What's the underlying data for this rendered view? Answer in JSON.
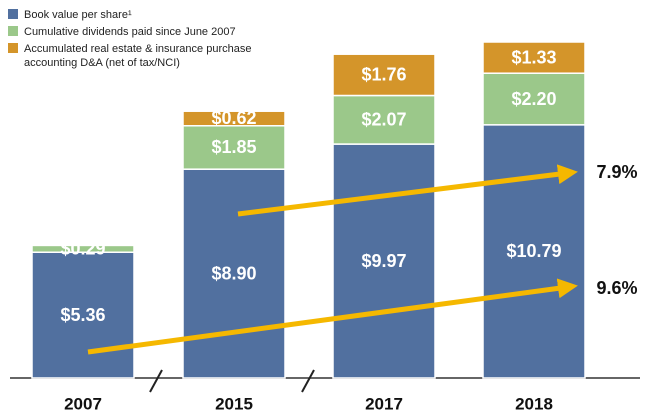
{
  "chart_data": {
    "type": "stacked_bar",
    "categories": [
      "2007",
      "2015",
      "2017",
      "2018"
    ],
    "series": [
      {
        "name": "Book value per share¹",
        "color": "#51709f",
        "values": [
          5.36,
          8.9,
          9.97,
          10.79
        ],
        "value_labels": [
          "$5.36",
          "$8.90",
          "$9.97",
          "$10.79"
        ]
      },
      {
        "name": "Cumulative dividends paid since June 2007",
        "color": "#9bc88a",
        "values": [
          0.29,
          1.85,
          2.07,
          2.2
        ],
        "value_labels": [
          "$0.29",
          "$1.85",
          "$2.07",
          "$2.20"
        ]
      },
      {
        "name": "Accumulated real estate & insurance purchase accounting D&A (net of tax/NCI)",
        "color": "#d4952a",
        "values": [
          null,
          0.62,
          1.76,
          1.33
        ],
        "value_labels": [
          null,
          "$0.62",
          "$1.76",
          "$1.33"
        ]
      }
    ],
    "annotations": [
      "7.9%",
      "9.6%"
    ]
  }
}
